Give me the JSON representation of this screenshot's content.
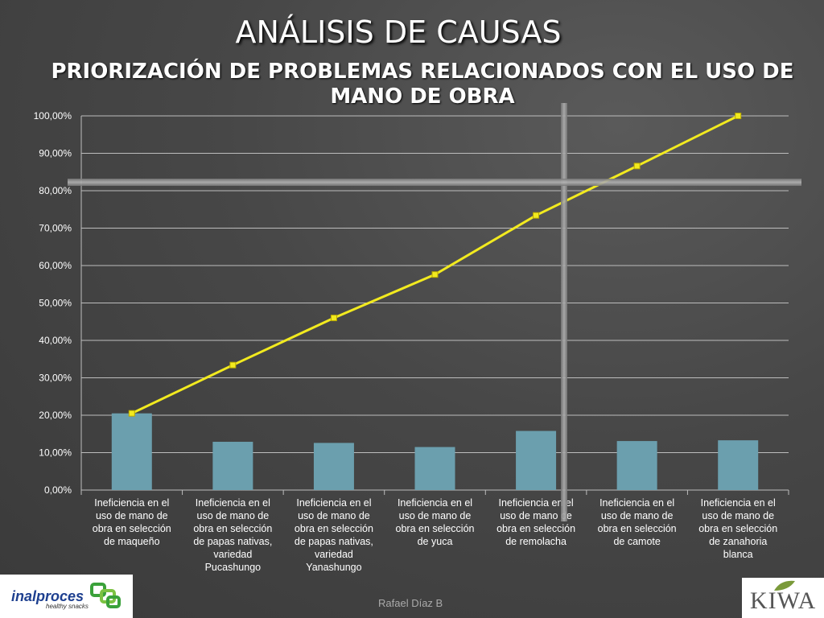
{
  "slide": {
    "title": "ANÁLISIS DE CAUSAS",
    "subtitle": "PRIORIZACIÓN DE PROBLEMAS RELACIONADOS CON EL USO DE MANO DE OBRA",
    "footer": "Rafael Díaz B",
    "logo_left": {
      "name": "inalproces",
      "tagline": "healthy snacks"
    },
    "logo_right": {
      "name": "KIWA"
    }
  },
  "chart_data": {
    "type": "bar",
    "title": "",
    "xlabel": "",
    "ylabel": "",
    "ylim": [
      0,
      100
    ],
    "ytick_step": 10,
    "ytick_labels": [
      "0,00%",
      "10,00%",
      "20,00%",
      "30,00%",
      "40,00%",
      "50,00%",
      "60,00%",
      "70,00%",
      "80,00%",
      "90,00%",
      "100,00%"
    ],
    "grid": true,
    "legend": "none",
    "categories": [
      "Ineficiencia en el uso de mano de obra en selección de maqueño",
      "Ineficiencia en el uso de mano de obra en selección de papas nativas, variedad Pucashungo",
      "Ineficiencia en el uso de mano de obra en selección de papas nativas, variedad Yanashungo",
      "Ineficiencia en el uso de mano de obra en selección de yuca",
      "Ineficiencia en el uso de mano de obra en selección de remolacha",
      "Ineficiencia en el uso de mano de obra en selección de camote",
      "Ineficiencia en el uso de mano de obra en selección de zanahoria blanca"
    ],
    "category_lines": [
      [
        "Ineficiencia en el",
        "uso de mano de",
        "obra en selección",
        "de maqueño"
      ],
      [
        "Ineficiencia en el",
        "uso de mano de",
        "obra en selección",
        "de papas nativas,",
        "variedad",
        "Pucashungo"
      ],
      [
        "Ineficiencia en el",
        "uso de mano de",
        "obra en selección",
        "de papas nativas,",
        "variedad",
        "Yanashungo"
      ],
      [
        "Ineficiencia en el",
        "uso de mano de",
        "obra en selección",
        "de yuca"
      ],
      [
        "Ineficiencia en el",
        "uso de mano de",
        "obra en selección",
        "de remolacha"
      ],
      [
        "Ineficiencia en el",
        "uso de mano de",
        "obra en selección",
        "de camote"
      ],
      [
        "Ineficiencia en el",
        "uso de mano de",
        "obra en selección",
        "de zanahoria",
        "blanca"
      ]
    ],
    "series": [
      {
        "type": "bar",
        "values": [
          20.5,
          12.9,
          12.6,
          11.5,
          15.8,
          13.1,
          13.3
        ],
        "color": "#6b9fae"
      },
      {
        "type": "line",
        "values": [
          20.5,
          33.4,
          46.0,
          57.6,
          73.4,
          86.6,
          100.0
        ],
        "color": "#f2ea1f"
      }
    ],
    "colors": {
      "grid": "#bdbdbd",
      "axis_text": "#ffffff",
      "marker": "#f2ea1f"
    }
  }
}
